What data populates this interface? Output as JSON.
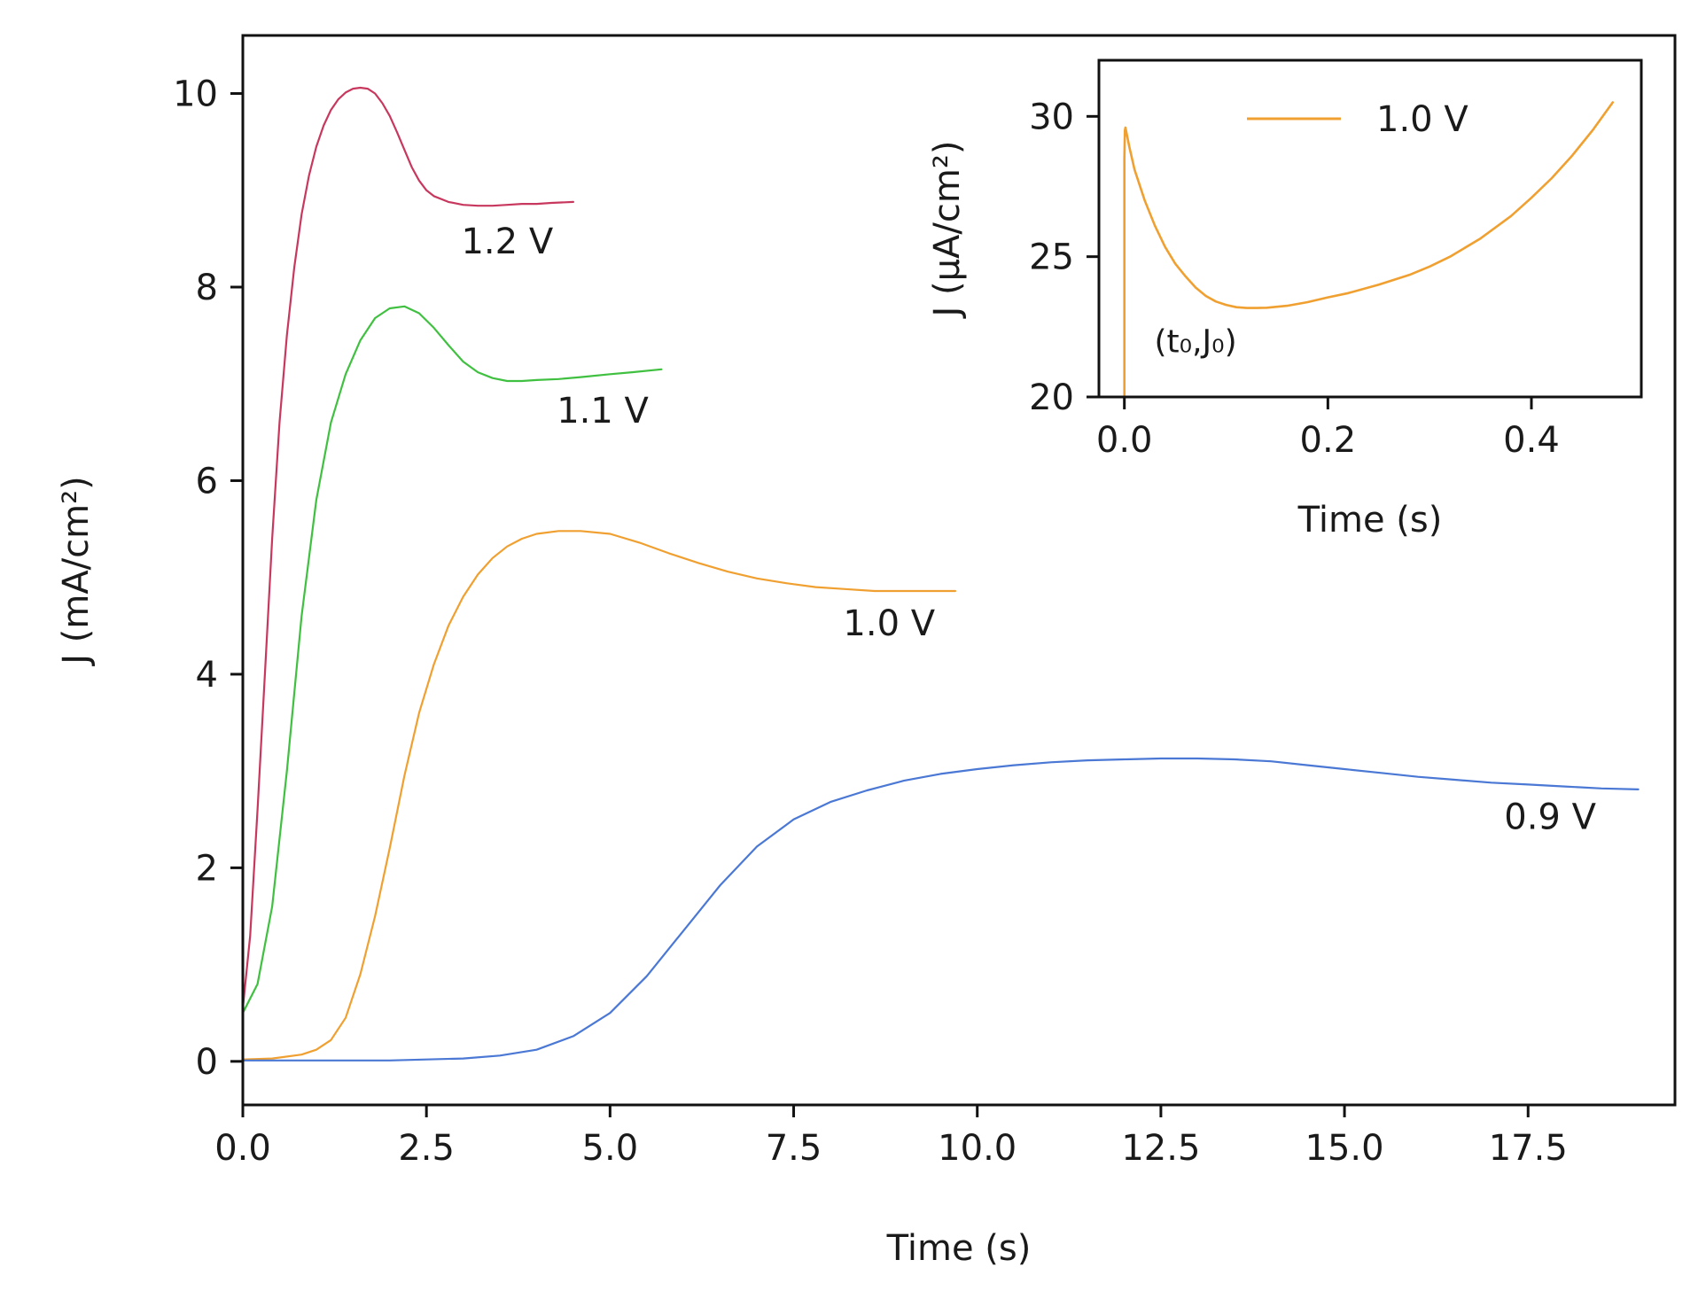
{
  "chart_data": [
    {
      "type": "line",
      "xlabel": "Time (s)",
      "ylabel": "J (mA/cm²)",
      "xlim": [
        0,
        19.5
      ],
      "ylim": [
        -0.45,
        10.6
      ],
      "xticks": [
        0,
        2.5,
        5.0,
        7.5,
        10.0,
        12.5,
        15.0,
        17.5
      ],
      "xtick_labels": [
        "0.0",
        "2.5",
        "5.0",
        "7.5",
        "10.0",
        "12.5",
        "15.0",
        "17.5"
      ],
      "yticks": [
        0,
        2,
        4,
        6,
        8,
        10
      ],
      "ytick_labels": [
        "0",
        "2",
        "4",
        "6",
        "8",
        "10"
      ],
      "grid": false,
      "legend": "none",
      "series": [
        {
          "name": "1.2 V",
          "color": "#c8385e",
          "x": [
            0,
            0.1,
            0.2,
            0.3,
            0.4,
            0.5,
            0.6,
            0.7,
            0.8,
            0.9,
            1.0,
            1.1,
            1.2,
            1.3,
            1.4,
            1.5,
            1.6,
            1.7,
            1.8,
            1.9,
            2.0,
            2.1,
            2.2,
            2.3,
            2.4,
            2.5,
            2.6,
            2.8,
            3.0,
            3.2,
            3.4,
            3.6,
            3.8,
            4.0,
            4.2,
            4.5
          ],
          "y": [
            0.55,
            1.3,
            2.6,
            4.0,
            5.4,
            6.6,
            7.5,
            8.2,
            8.75,
            9.15,
            9.45,
            9.67,
            9.83,
            9.94,
            10.01,
            10.05,
            10.06,
            10.05,
            10.0,
            9.9,
            9.77,
            9.6,
            9.42,
            9.24,
            9.1,
            9.0,
            8.94,
            8.88,
            8.85,
            8.84,
            8.84,
            8.85,
            8.86,
            8.86,
            8.87,
            8.88
          ]
        },
        {
          "name": "1.1 V",
          "color": "#40c040",
          "x": [
            0,
            0.2,
            0.4,
            0.6,
            0.8,
            1.0,
            1.2,
            1.4,
            1.6,
            1.8,
            2.0,
            2.2,
            2.4,
            2.6,
            2.8,
            3.0,
            3.2,
            3.4,
            3.6,
            3.8,
            4.0,
            4.3,
            4.6,
            5.0,
            5.3,
            5.7
          ],
          "y": [
            0.5,
            0.8,
            1.6,
            3.0,
            4.6,
            5.8,
            6.6,
            7.1,
            7.45,
            7.68,
            7.78,
            7.8,
            7.73,
            7.58,
            7.4,
            7.23,
            7.12,
            7.06,
            7.03,
            7.03,
            7.04,
            7.05,
            7.07,
            7.1,
            7.12,
            7.15
          ]
        },
        {
          "name": "1.0 V",
          "color": "#f0a030",
          "x": [
            0,
            0.4,
            0.8,
            1.0,
            1.2,
            1.4,
            1.6,
            1.8,
            2.0,
            2.2,
            2.4,
            2.6,
            2.8,
            3.0,
            3.2,
            3.4,
            3.6,
            3.8,
            4.0,
            4.3,
            4.6,
            5.0,
            5.4,
            5.8,
            6.2,
            6.6,
            7.0,
            7.4,
            7.8,
            8.2,
            8.6,
            9.0,
            9.3,
            9.7
          ],
          "y": [
            0.02,
            0.03,
            0.07,
            0.12,
            0.22,
            0.45,
            0.9,
            1.5,
            2.2,
            2.95,
            3.6,
            4.1,
            4.5,
            4.8,
            5.03,
            5.2,
            5.32,
            5.4,
            5.45,
            5.48,
            5.48,
            5.45,
            5.36,
            5.25,
            5.15,
            5.06,
            4.99,
            4.94,
            4.9,
            4.88,
            4.86,
            4.86,
            4.86,
            4.86
          ]
        },
        {
          "name": "0.9 V",
          "color": "#4a78d4",
          "x": [
            0,
            1.0,
            2.0,
            3.0,
            3.5,
            4.0,
            4.5,
            5.0,
            5.5,
            6.0,
            6.5,
            7.0,
            7.5,
            8.0,
            8.5,
            9.0,
            9.5,
            10.0,
            10.5,
            11.0,
            11.5,
            12.0,
            12.5,
            13.0,
            13.5,
            14.0,
            14.5,
            15.0,
            15.5,
            16.0,
            16.5,
            17.0,
            17.5,
            18.0,
            18.5,
            19.0
          ],
          "y": [
            0.01,
            0.01,
            0.01,
            0.03,
            0.06,
            0.12,
            0.26,
            0.5,
            0.88,
            1.35,
            1.82,
            2.22,
            2.5,
            2.68,
            2.8,
            2.9,
            2.97,
            3.02,
            3.06,
            3.09,
            3.11,
            3.12,
            3.13,
            3.13,
            3.12,
            3.1,
            3.06,
            3.02,
            2.98,
            2.94,
            2.91,
            2.88,
            2.86,
            2.84,
            2.82,
            2.81
          ]
        }
      ],
      "annotations": [
        {
          "text": "1.2 V",
          "x": 3.6,
          "y": 8.35
        },
        {
          "text": "1.1 V",
          "x": 4.9,
          "y": 6.6
        },
        {
          "text": "1.0 V",
          "x": 8.8,
          "y": 4.4
        },
        {
          "text": "0.9 V",
          "x": 17.8,
          "y": 2.4
        }
      ]
    },
    {
      "type": "line",
      "xlabel": "Time (s)",
      "ylabel": "J (μA/cm²)",
      "xlim": [
        -0.025,
        0.508
      ],
      "ylim": [
        20,
        32
      ],
      "xticks": [
        0.0,
        0.2,
        0.4
      ],
      "xtick_labels": [
        "0.0",
        "0.2",
        "0.4"
      ],
      "yticks": [
        20,
        25,
        30
      ],
      "ytick_labels": [
        "20",
        "25",
        "30"
      ],
      "grid": false,
      "legend": "top-center",
      "series": [
        {
          "name": "1.0 V",
          "color": "#f0a030",
          "x": [
            0.0,
            0.0,
            0.0005,
            0.001,
            0.005,
            0.01,
            0.02,
            0.03,
            0.04,
            0.05,
            0.06,
            0.07,
            0.08,
            0.09,
            0.1,
            0.11,
            0.12,
            0.13,
            0.14,
            0.16,
            0.18,
            0.2,
            0.22,
            0.25,
            0.28,
            0.3,
            0.32,
            0.35,
            0.38,
            0.4,
            0.42,
            0.44,
            0.46,
            0.48
          ],
          "y": [
            20.0,
            28.5,
            29.5,
            29.6,
            28.9,
            28.1,
            27.0,
            26.1,
            25.35,
            24.75,
            24.3,
            23.9,
            23.6,
            23.4,
            23.28,
            23.2,
            23.17,
            23.17,
            23.18,
            23.25,
            23.38,
            23.55,
            23.7,
            24.0,
            24.35,
            24.65,
            25.0,
            25.65,
            26.45,
            27.1,
            27.8,
            28.6,
            29.5,
            30.5
          ]
        }
      ],
      "annotations": [
        {
          "text": "(t₀,J₀)",
          "x": 0.07,
          "y": 21.6
        }
      ]
    }
  ]
}
